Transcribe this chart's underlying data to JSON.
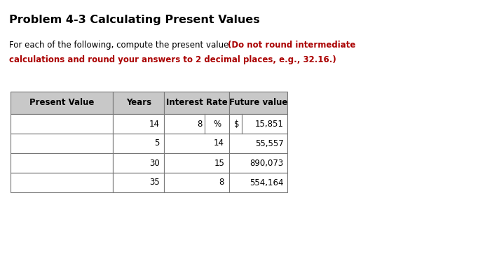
{
  "title": "Problem 4-3 Calculating Present Values",
  "line1_normal": "For each of the following, compute the present value. ",
  "line1_bold": "(Do not round intermediate",
  "line2_bold": "calculations and round your answers to 2 decimal places, e.g., 32.16.)",
  "col_headers": [
    "Present Value",
    "Years",
    "Interest Rate",
    "Future value"
  ],
  "rows": [
    [
      "14",
      "8",
      "%",
      "$",
      "15,851"
    ],
    [
      "5",
      "14",
      "",
      "",
      "55,557"
    ],
    [
      "30",
      "15",
      "",
      "",
      "890,073"
    ],
    [
      "35",
      "8",
      "",
      "",
      "554,164"
    ]
  ],
  "header_bg": "#c8c8c8",
  "cell_bg": "#ffffff",
  "border_color": "#777777",
  "arrow_color": "#4472c4",
  "text_color": "#000000",
  "bold_red_color": "#aa0000",
  "title_color": "#000000",
  "fig_bg": "#ffffff",
  "fontsize_title": 11.5,
  "fontsize_text": 8.5,
  "fontsize_table": 8.5
}
